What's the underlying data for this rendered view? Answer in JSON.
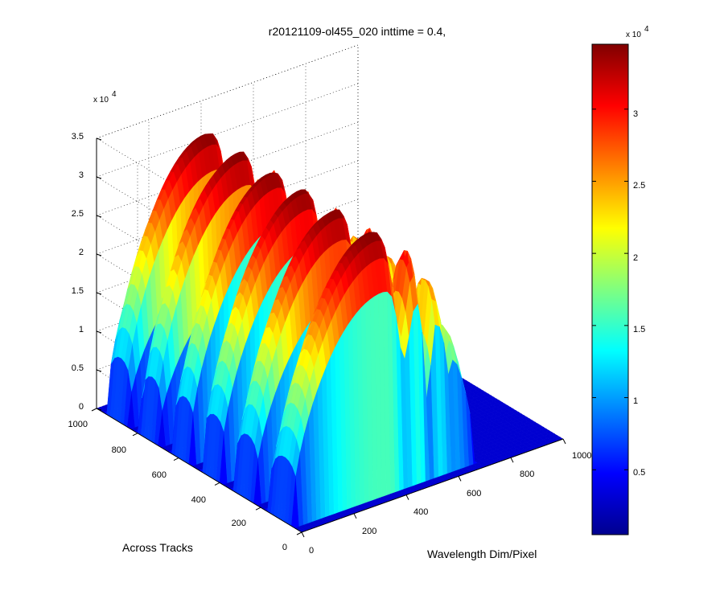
{
  "chart_data": {
    "type": "surface3d",
    "title": "r20121109-ol455_020 inttime = 0.4,",
    "xlabel": "Wavelength Dim/Pixel",
    "ylabel": "Across Tracks",
    "zlabel": "",
    "xlim": [
      0,
      1000
    ],
    "ylim": [
      0,
      1000
    ],
    "zlim": [
      0,
      35000
    ],
    "x_ticks": [
      "0",
      "200",
      "400",
      "600",
      "800",
      "1000"
    ],
    "y_ticks": [
      "0",
      "200",
      "400",
      "600",
      "800",
      "1000"
    ],
    "z_ticks": [
      "0",
      "0.5",
      "1",
      "1.5",
      "2",
      "2.5",
      "3",
      "3.5"
    ],
    "z_multiplier": {
      "base": "x 10",
      "exponent": "4"
    },
    "grid": true,
    "colormap": "jet",
    "colorbar": {
      "ticks": [
        "0.5",
        "1",
        "1.5",
        "2",
        "2.5",
        "3"
      ],
      "tick_values": [
        5000,
        10000,
        15000,
        20000,
        25000,
        30000
      ],
      "range": [
        500,
        34500
      ],
      "multiplier": {
        "base": "x 10",
        "exponent": "4"
      }
    },
    "signal": {
      "active_wavelength_range": [
        0,
        700
      ],
      "peak_value": 33000,
      "active_track_bands": [
        [
          40,
          170
        ],
        [
          230,
          340
        ],
        [
          390,
          500
        ],
        [
          540,
          640
        ],
        [
          700,
          800
        ],
        [
          850,
          960
        ]
      ]
    }
  }
}
